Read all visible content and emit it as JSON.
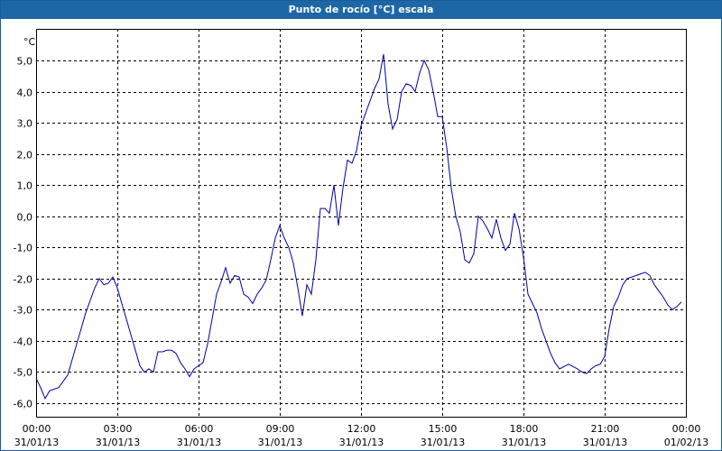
{
  "window": {
    "title": "Punto de rocío [°C] escala"
  },
  "chart_data": {
    "type": "line",
    "title": "Punto de rocío [°C] escala",
    "ylabel": "°C",
    "xlabel": "",
    "xlim": [
      "31/01/13 00:00",
      "01/02/13 00:00"
    ],
    "ylim": [
      -6.5,
      5.8
    ],
    "grid": true,
    "y_ticks": [
      "5,0",
      "4,0",
      "3,0",
      "2,0",
      "1,0",
      "0,0",
      "-1,0",
      "-2,0",
      "-3,0",
      "-4,0",
      "-5,0",
      "-6,0"
    ],
    "x_ticks": [
      {
        "time": "00:00",
        "date": "31/01/13"
      },
      {
        "time": "03:00",
        "date": "31/01/13"
      },
      {
        "time": "06:00",
        "date": "31/01/13"
      },
      {
        "time": "09:00",
        "date": "31/01/13"
      },
      {
        "time": "12:00",
        "date": "31/01/13"
      },
      {
        "time": "15:00",
        "date": "31/01/13"
      },
      {
        "time": "18:00",
        "date": "31/01/13"
      },
      {
        "time": "21:00",
        "date": "31/01/13"
      },
      {
        "time": "00:00",
        "date": "01/02/13"
      }
    ],
    "series": [
      {
        "color": "#0000a0",
        "points": [
          [
            "00:00",
            -5.2
          ],
          [
            "00:10",
            -5.5
          ],
          [
            "00:20",
            -5.85
          ],
          [
            "00:30",
            -5.6
          ],
          [
            "00:50",
            -5.5
          ],
          [
            "01:00",
            -5.3
          ],
          [
            "01:10",
            -5.1
          ],
          [
            "01:20",
            -4.6
          ],
          [
            "01:30",
            -4.1
          ],
          [
            "01:40",
            -3.6
          ],
          [
            "01:50",
            -3.1
          ],
          [
            "02:00",
            -2.7
          ],
          [
            "02:10",
            -2.3
          ],
          [
            "02:20",
            -2.0
          ],
          [
            "02:30",
            -2.2
          ],
          [
            "02:40",
            -2.15
          ],
          [
            "02:50",
            -1.95
          ],
          [
            "03:00",
            -2.3
          ],
          [
            "03:10",
            -2.8
          ],
          [
            "03:20",
            -3.3
          ],
          [
            "03:30",
            -3.8
          ],
          [
            "03:40",
            -4.3
          ],
          [
            "03:50",
            -4.8
          ],
          [
            "04:00",
            -5.0
          ],
          [
            "04:10",
            -4.9
          ],
          [
            "04:20",
            -5.0
          ],
          [
            "04:30",
            -4.35
          ],
          [
            "04:40",
            -4.35
          ],
          [
            "04:50",
            -4.3
          ],
          [
            "05:00",
            -4.3
          ],
          [
            "05:10",
            -4.4
          ],
          [
            "05:20",
            -4.7
          ],
          [
            "05:30",
            -4.9
          ],
          [
            "05:40",
            -5.15
          ],
          [
            "05:50",
            -4.9
          ],
          [
            "06:00",
            -4.8
          ],
          [
            "06:10",
            -4.7
          ],
          [
            "06:20",
            -4.1
          ],
          [
            "06:30",
            -3.3
          ],
          [
            "06:40",
            -2.5
          ],
          [
            "06:50",
            -2.1
          ],
          [
            "07:00",
            -1.65
          ],
          [
            "07:10",
            -2.15
          ],
          [
            "07:20",
            -1.9
          ],
          [
            "07:30",
            -1.95
          ],
          [
            "07:40",
            -2.5
          ],
          [
            "07:50",
            -2.6
          ],
          [
            "08:00",
            -2.8
          ],
          [
            "08:10",
            -2.5
          ],
          [
            "08:20",
            -2.3
          ],
          [
            "08:30",
            -2.05
          ],
          [
            "08:40",
            -1.4
          ],
          [
            "08:50",
            -0.7
          ],
          [
            "09:00",
            -0.3
          ],
          [
            "09:10",
            -0.7
          ],
          [
            "09:20",
            -1.0
          ],
          [
            "09:30",
            -1.5
          ],
          [
            "09:40",
            -2.3
          ],
          [
            "09:50",
            -3.2
          ],
          [
            "10:00",
            -2.2
          ],
          [
            "10:10",
            -2.5
          ],
          [
            "10:20",
            -1.4
          ],
          [
            "10:30",
            0.25
          ],
          [
            "10:40",
            0.25
          ],
          [
            "10:50",
            0.1
          ],
          [
            "11:00",
            1.0
          ],
          [
            "11:10",
            -0.3
          ],
          [
            "11:20",
            0.9
          ],
          [
            "11:30",
            1.8
          ],
          [
            "11:40",
            1.7
          ],
          [
            "11:50",
            2.1
          ],
          [
            "12:00",
            2.9
          ],
          [
            "12:10",
            3.3
          ],
          [
            "12:20",
            3.7
          ],
          [
            "12:30",
            4.1
          ],
          [
            "12:40",
            4.4
          ],
          [
            "12:50",
            5.2
          ],
          [
            "13:00",
            3.6
          ],
          [
            "13:10",
            2.8
          ],
          [
            "13:20",
            3.1
          ],
          [
            "13:30",
            4.0
          ],
          [
            "13:40",
            4.25
          ],
          [
            "13:50",
            4.2
          ],
          [
            "14:00",
            4.0
          ],
          [
            "14:10",
            4.6
          ],
          [
            "14:20",
            5.0
          ],
          [
            "14:30",
            4.7
          ],
          [
            "14:40",
            4.0
          ],
          [
            "14:50",
            3.2
          ],
          [
            "15:00",
            3.2
          ],
          [
            "15:10",
            2.2
          ],
          [
            "15:20",
            0.9
          ],
          [
            "15:30",
            0.0
          ],
          [
            "15:40",
            -0.5
          ],
          [
            "15:50",
            -1.4
          ],
          [
            "16:00",
            -1.5
          ],
          [
            "16:10",
            -1.2
          ],
          [
            "16:20",
            0.0
          ],
          [
            "16:30",
            -0.15
          ],
          [
            "16:40",
            -0.4
          ],
          [
            "16:50",
            -0.7
          ],
          [
            "17:00",
            -0.1
          ],
          [
            "17:10",
            -0.7
          ],
          [
            "17:20",
            -1.1
          ],
          [
            "17:30",
            -0.9
          ],
          [
            "17:40",
            0.1
          ],
          [
            "17:50",
            -0.4
          ],
          [
            "18:00",
            -1.3
          ],
          [
            "18:10",
            -2.5
          ],
          [
            "18:20",
            -2.8
          ],
          [
            "18:30",
            -3.1
          ],
          [
            "18:40",
            -3.6
          ],
          [
            "18:50",
            -4.0
          ],
          [
            "19:00",
            -4.4
          ],
          [
            "19:10",
            -4.7
          ],
          [
            "19:20",
            -4.9
          ],
          [
            "19:40",
            -4.75
          ],
          [
            "20:00",
            -4.9
          ],
          [
            "20:10",
            -5.0
          ],
          [
            "20:20",
            -5.05
          ],
          [
            "20:30",
            -4.9
          ],
          [
            "20:40",
            -4.8
          ],
          [
            "20:50",
            -4.75
          ],
          [
            "21:00",
            -4.5
          ],
          [
            "21:10",
            -3.6
          ],
          [
            "21:20",
            -2.9
          ],
          [
            "21:30",
            -2.6
          ],
          [
            "21:40",
            -2.2
          ],
          [
            "21:50",
            -2.0
          ],
          [
            "22:00",
            -1.95
          ],
          [
            "22:10",
            -1.9
          ],
          [
            "22:20",
            -1.85
          ],
          [
            "22:30",
            -1.8
          ],
          [
            "22:40",
            -1.9
          ],
          [
            "22:50",
            -2.2
          ],
          [
            "23:00",
            -2.4
          ],
          [
            "23:10",
            -2.6
          ],
          [
            "23:20",
            -2.85
          ],
          [
            "23:30",
            -3.0
          ],
          [
            "23:40",
            -2.9
          ],
          [
            "23:50",
            -2.75
          ]
        ]
      }
    ]
  }
}
